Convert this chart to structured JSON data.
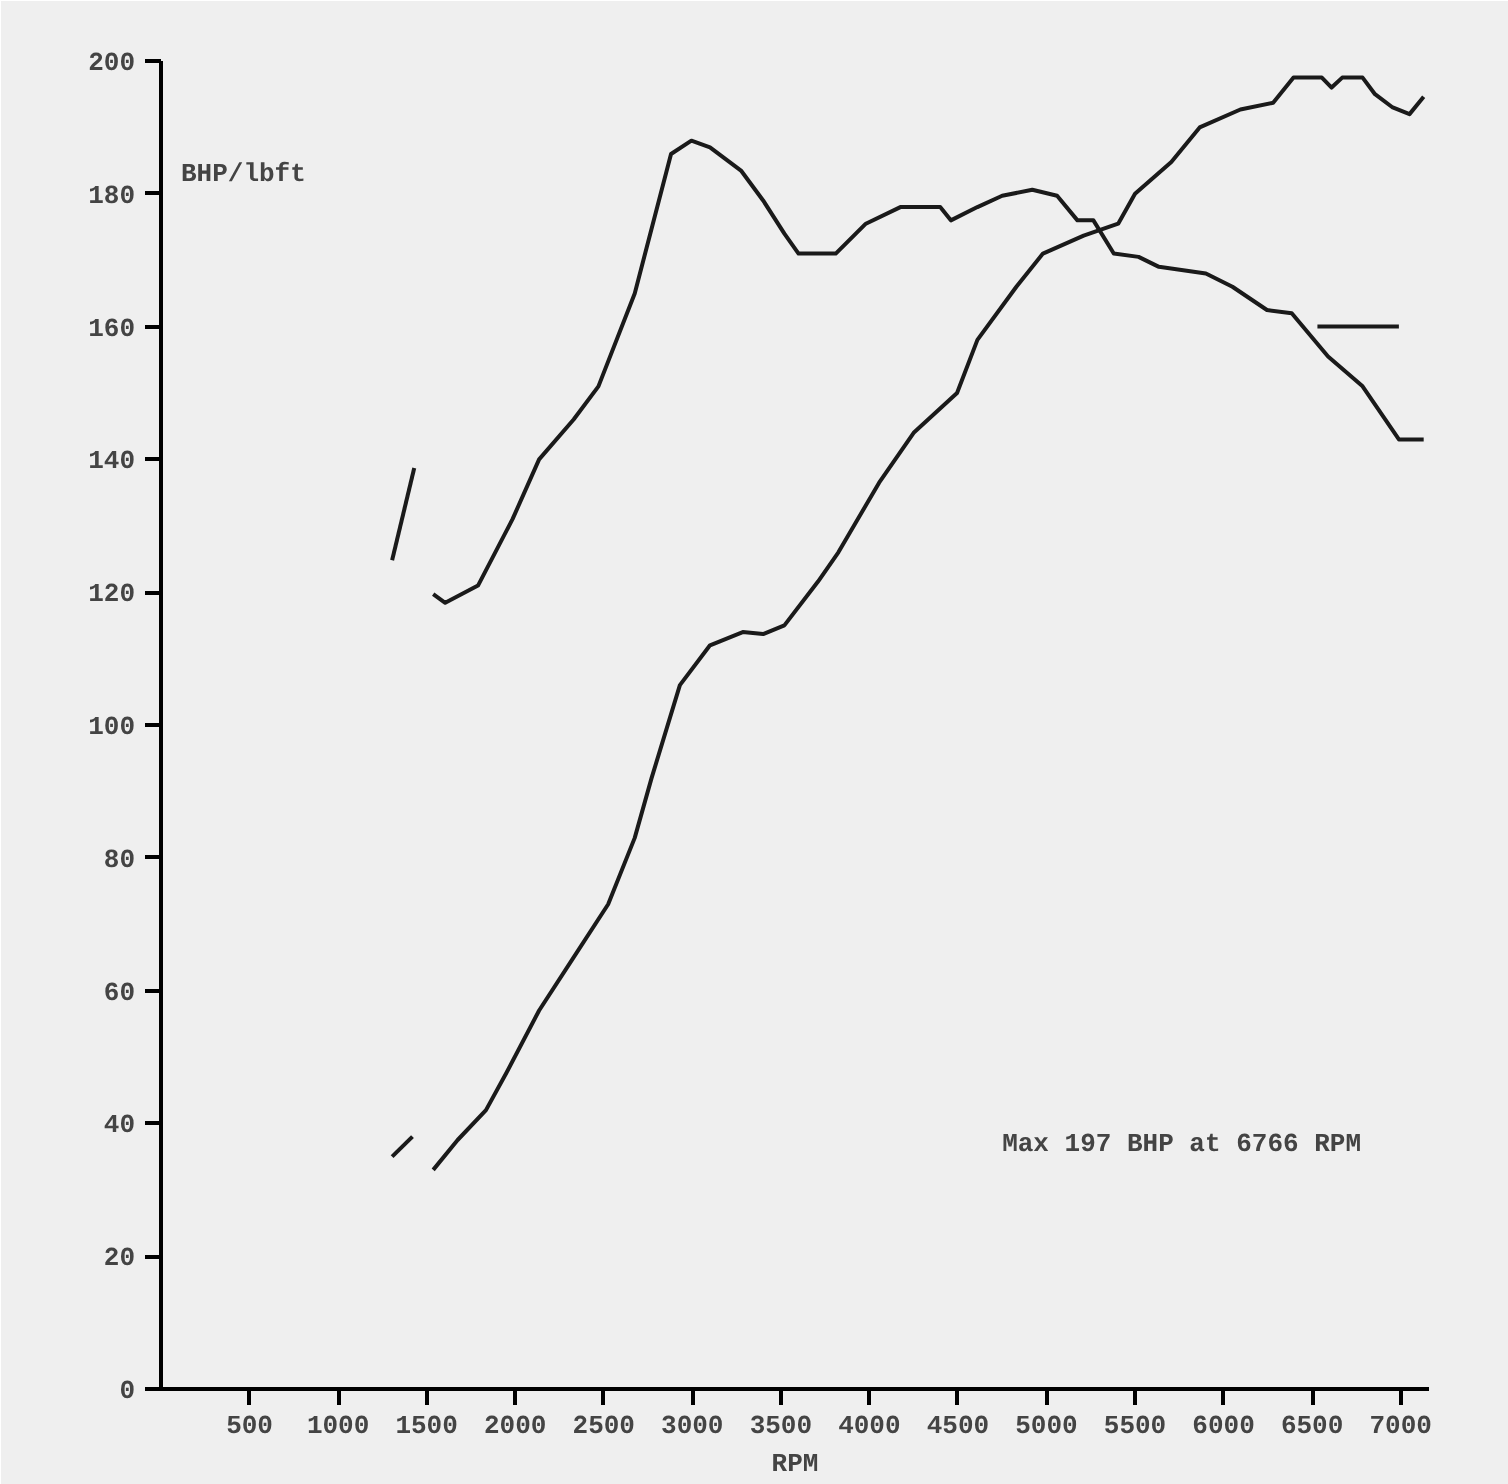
{
  "chart_data": {
    "type": "line",
    "xlabel": "RPM",
    "ylabel": "BHP/lbft",
    "annotations": [
      "Max 197 BHP at 6766 RPM"
    ],
    "xlim": [
      0,
      7160
    ],
    "ylim": [
      0,
      200
    ],
    "xticks": [
      500,
      1000,
      1500,
      2000,
      2500,
      3000,
      3500,
      4000,
      4500,
      5000,
      5500,
      6000,
      6500,
      7000
    ],
    "yticks": [
      0,
      20,
      40,
      60,
      80,
      100,
      120,
      140,
      160,
      180,
      200
    ],
    "grid": false,
    "line_style": "solid",
    "series": [
      {
        "color": "#1a1a1a",
        "x": [
          1537,
          1605,
          1790,
          1985,
          2135,
          2330,
          2470,
          2675,
          2880,
          2995,
          3100,
          3275,
          3400,
          3520,
          3600,
          3810,
          3980,
          4175,
          4400,
          4460,
          4610,
          4750,
          4920,
          5060,
          5175,
          5265,
          5380,
          5520,
          5635,
          5900,
          6050,
          6245,
          6385,
          6590,
          6785,
          6990,
          7130
        ],
        "values": [
          119.7,
          118.4,
          121,
          131,
          140,
          146,
          151,
          165,
          186,
          188,
          187,
          183.5,
          179,
          174,
          171,
          171,
          175.5,
          178,
          178,
          176,
          178,
          179.7,
          180.6,
          179.7,
          176,
          176,
          171,
          170.5,
          169,
          168,
          166,
          162.5,
          162,
          155.5,
          151,
          143,
          143
        ]
      },
      {
        "color": "#1a1a1a",
        "x": [
          1537,
          1675,
          1835,
          1950,
          2135,
          2330,
          2525,
          2675,
          2770,
          2930,
          3100,
          3285,
          3400,
          3520,
          3710,
          3825,
          4055,
          4250,
          4495,
          4610,
          4830,
          4980,
          5210,
          5405,
          5500,
          5705,
          5865,
          6095,
          6280,
          6395,
          6555,
          6610,
          6670,
          6785,
          6855,
          6955,
          7050,
          7130
        ],
        "values": [
          33,
          37.5,
          42,
          47.6,
          57,
          65,
          73,
          83,
          92,
          106,
          112,
          114,
          113.7,
          115,
          121.6,
          126,
          136.5,
          144,
          150,
          158,
          166,
          171,
          173.7,
          175.5,
          180,
          184.8,
          190,
          192.7,
          193.7,
          197.5,
          197.5,
          196,
          197.5,
          197.5,
          195,
          193,
          192,
          194.6
        ]
      },
      {
        "color": "#1a1a1a",
        "x": [
          1305,
          1430
        ],
        "values": [
          124.8,
          138.7
        ]
      },
      {
        "color": "#1a1a1a",
        "x": [
          1305,
          1420
        ],
        "values": [
          35,
          38
        ]
      },
      {
        "color": "#1a1a1a",
        "x": [
          6530,
          6990
        ],
        "values": [
          160,
          160
        ]
      }
    ]
  }
}
